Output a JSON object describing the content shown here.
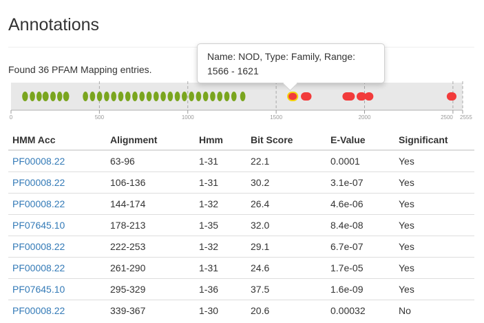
{
  "page": {
    "title": "Annotations"
  },
  "summary": {
    "found_text": "Found 36 PFAM Mapping entries."
  },
  "track": {
    "length": 2555,
    "range": [
      0,
      2555
    ],
    "ticks": [
      {
        "value": 0,
        "label": "0"
      },
      {
        "value": 500,
        "label": "500"
      },
      {
        "value": 1000,
        "label": "1000"
      },
      {
        "value": 1500,
        "label": "1500"
      },
      {
        "value": 2000,
        "label": "2000"
      },
      {
        "value": 2500,
        "label": "2500"
      },
      {
        "value": 2555,
        "label": "2555"
      }
    ],
    "colors": {
      "significant": "#7aa51f",
      "not_significant": "#f23b3b",
      "highlight_border": "#f5d20c",
      "background": "#e8e8e8"
    },
    "domains": [
      {
        "start": 63,
        "end": 96,
        "significant": true
      },
      {
        "start": 106,
        "end": 136,
        "significant": true
      },
      {
        "start": 144,
        "end": 174,
        "significant": true
      },
      {
        "start": 178,
        "end": 213,
        "significant": true
      },
      {
        "start": 222,
        "end": 253,
        "significant": true
      },
      {
        "start": 261,
        "end": 290,
        "significant": true
      },
      {
        "start": 295,
        "end": 329,
        "significant": true
      },
      {
        "start": 406,
        "end": 436,
        "significant": true
      },
      {
        "start": 446,
        "end": 476,
        "significant": true
      },
      {
        "start": 486,
        "end": 516,
        "significant": true
      },
      {
        "start": 526,
        "end": 556,
        "significant": true
      },
      {
        "start": 566,
        "end": 596,
        "significant": true
      },
      {
        "start": 606,
        "end": 636,
        "significant": true
      },
      {
        "start": 646,
        "end": 676,
        "significant": true
      },
      {
        "start": 686,
        "end": 716,
        "significant": true
      },
      {
        "start": 726,
        "end": 756,
        "significant": true
      },
      {
        "start": 766,
        "end": 796,
        "significant": true
      },
      {
        "start": 806,
        "end": 836,
        "significant": true
      },
      {
        "start": 846,
        "end": 876,
        "significant": true
      },
      {
        "start": 886,
        "end": 916,
        "significant": true
      },
      {
        "start": 926,
        "end": 956,
        "significant": true
      },
      {
        "start": 966,
        "end": 996,
        "significant": true
      },
      {
        "start": 1006,
        "end": 1036,
        "significant": true
      },
      {
        "start": 1046,
        "end": 1076,
        "significant": true
      },
      {
        "start": 1086,
        "end": 1116,
        "significant": true
      },
      {
        "start": 1126,
        "end": 1156,
        "significant": true
      },
      {
        "start": 1166,
        "end": 1196,
        "significant": true
      },
      {
        "start": 1206,
        "end": 1236,
        "significant": true
      },
      {
        "start": 1246,
        "end": 1276,
        "significant": true
      },
      {
        "start": 1296,
        "end": 1326,
        "significant": true
      },
      {
        "start": 1566,
        "end": 1621,
        "significant": false,
        "highlighted": true
      },
      {
        "start": 1640,
        "end": 1700,
        "significant": false
      },
      {
        "start": 1875,
        "end": 1945,
        "significant": false
      },
      {
        "start": 1955,
        "end": 2010,
        "significant": false
      },
      {
        "start": 2000,
        "end": 2050,
        "significant": false
      },
      {
        "start": 2465,
        "end": 2520,
        "significant": false
      }
    ]
  },
  "tooltip": {
    "text": "Name: NOD, Type: Family, Range: 1566 - 1621"
  },
  "table": {
    "headers": [
      "HMM Acc",
      "Alignment",
      "Hmm",
      "Bit Score",
      "E-Value",
      "Significant"
    ],
    "rows": [
      [
        "PF00008.22",
        "63-96",
        "1-31",
        "22.1",
        "0.0001",
        "Yes"
      ],
      [
        "PF00008.22",
        "106-136",
        "1-31",
        "30.2",
        "3.1e-07",
        "Yes"
      ],
      [
        "PF00008.22",
        "144-174",
        "1-32",
        "26.4",
        "4.6e-06",
        "Yes"
      ],
      [
        "PF07645.10",
        "178-213",
        "1-35",
        "32.0",
        "8.4e-08",
        "Yes"
      ],
      [
        "PF00008.22",
        "222-253",
        "1-32",
        "29.1",
        "6.7e-07",
        "Yes"
      ],
      [
        "PF00008.22",
        "261-290",
        "1-31",
        "24.6",
        "1.7e-05",
        "Yes"
      ],
      [
        "PF07645.10",
        "295-329",
        "1-36",
        "37.5",
        "1.6e-09",
        "Yes"
      ],
      [
        "PF00008.22",
        "339-367",
        "1-30",
        "20.6",
        "0.00032",
        "No"
      ]
    ]
  }
}
